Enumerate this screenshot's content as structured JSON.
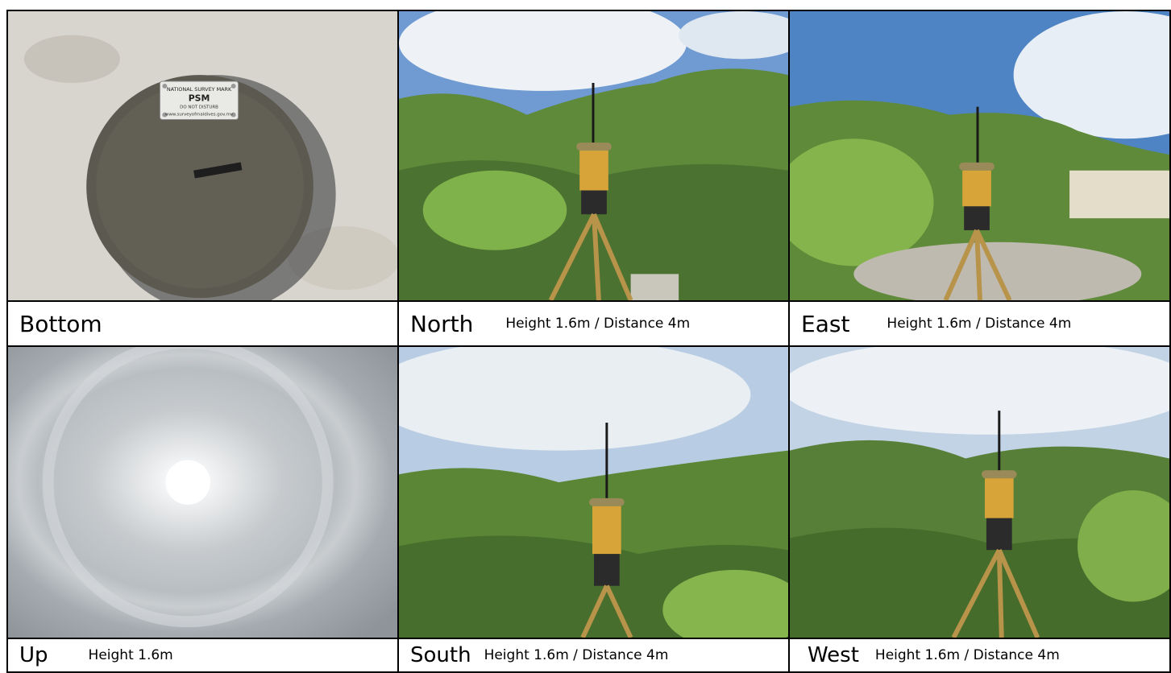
{
  "panels": [
    {
      "id": "bottom",
      "direction": "Bottom",
      "meta": ""
    },
    {
      "id": "north",
      "direction": "North",
      "meta": "Height 1.6m / Distance 4m"
    },
    {
      "id": "east",
      "direction": "East",
      "meta": "Height 1.6m / Distance 4m"
    },
    {
      "id": "up",
      "direction": "Up",
      "meta": "Height 1.6m"
    },
    {
      "id": "south",
      "direction": "South",
      "meta": "Height 1.6m / Distance 4m"
    },
    {
      "id": "west",
      "direction": "West",
      "meta": "Height 1.6m / Distance 4m"
    }
  ],
  "plaque": {
    "line1": "NATIONAL SURVEY MARK",
    "line2": "PSM",
    "line3": "DO NOT DISTURB",
    "line4": "www.surveyofmaldives.gov.mv"
  },
  "colors": {
    "sky": "#7aa3d6",
    "foliage": "#5f8a3a",
    "sand": "#d9d6cf",
    "concrete": "#5c5a50",
    "receiver_gold": "#d7a43a"
  }
}
